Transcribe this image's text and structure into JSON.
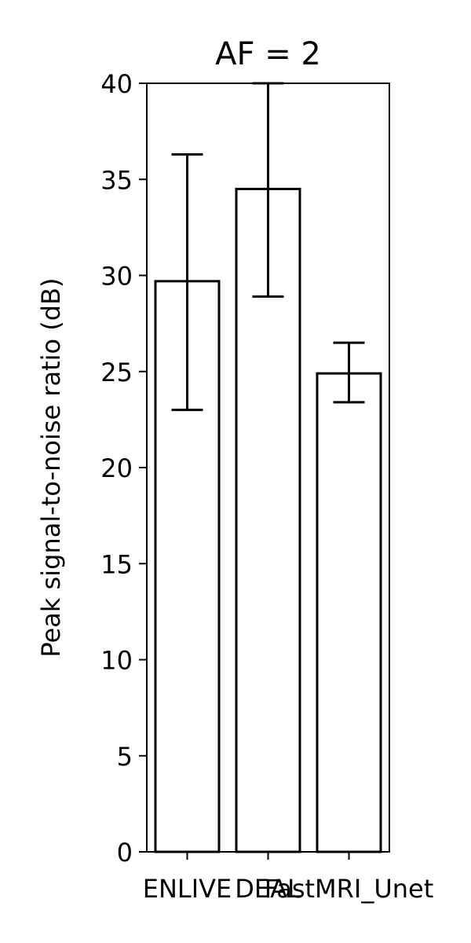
{
  "chart_data": {
    "type": "bar",
    "title": "AF = 2",
    "xlabel": "",
    "ylabel": "Peak signal-to-noise ratio (dB)",
    "categories": [
      "ENLIVE",
      "DEAL",
      "FastMRI_Unet"
    ],
    "values": [
      29.7,
      34.5,
      24.9
    ],
    "error_low": [
      23.0,
      28.9,
      23.4
    ],
    "error_high": [
      36.3,
      40.0,
      26.5
    ],
    "ylim": [
      0,
      40
    ],
    "yticks": [
      0,
      5,
      10,
      15,
      20,
      25,
      30,
      35,
      40
    ],
    "grid": false,
    "legend": "none",
    "bar_fill": "#ffffff",
    "edge_color": "#000000"
  }
}
